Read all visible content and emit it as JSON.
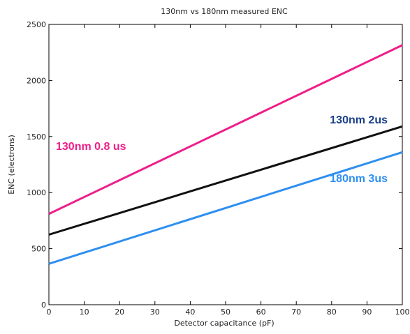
{
  "chart_data": {
    "type": "line",
    "title": "130nm  vs  180nm  measured ENC",
    "xlabel": "Detector capacitance (pF)",
    "ylabel": "ENC (electrons)",
    "xlim": [
      0,
      100
    ],
    "ylim": [
      0,
      2500
    ],
    "xticks": [
      0,
      10,
      20,
      30,
      40,
      50,
      60,
      70,
      80,
      90,
      100
    ],
    "yticks": [
      0,
      500,
      1000,
      1500,
      2000,
      2500
    ],
    "grid": false,
    "series": [
      {
        "name": "130nm  0.8 us",
        "color": "#ee1e8a",
        "x": [
          0,
          100
        ],
        "y": [
          810,
          2315
        ]
      },
      {
        "name": "130nm  2us",
        "color": "#111111",
        "label_color": "#1a3f8a",
        "x": [
          0,
          100
        ],
        "y": [
          625,
          1590
        ]
      },
      {
        "name": "180nm  3us",
        "color": "#2e8ff0",
        "x": [
          0,
          100
        ],
        "y": [
          365,
          1360
        ]
      }
    ]
  }
}
